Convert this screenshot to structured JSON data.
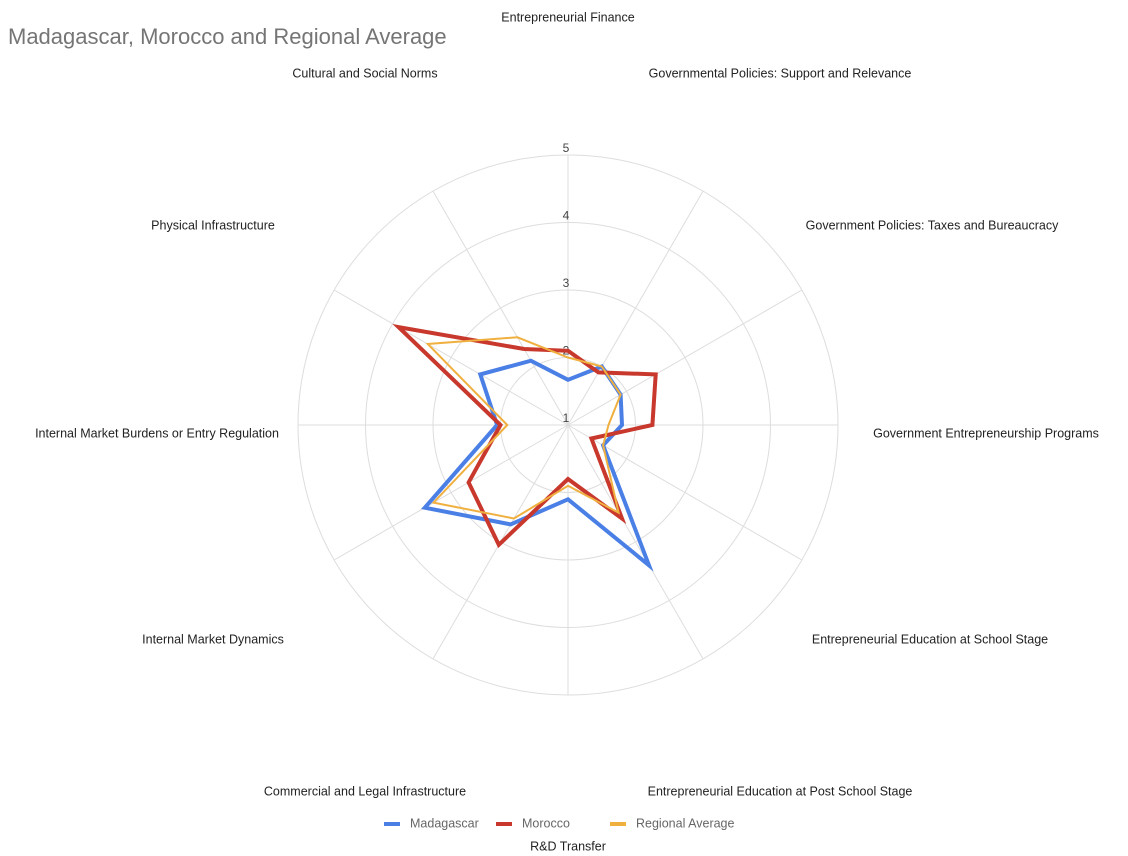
{
  "chart_data": {
    "type": "radar",
    "title": "Madagascar, Morocco and Regional Average",
    "categories": [
      "Entrepreneurial Finance",
      "Governmental Policies: Support and Relevance",
      "Government Policies: Taxes and Bureaucracy",
      "Government Entrepreneurship Programs",
      "Entrepreneurial Education at School Stage",
      "Entrepreneurial Education at Post School Stage",
      "R&D Transfer",
      "Commercial and Legal Infrastructure",
      "Internal Market Dynamics",
      "Internal Market Burdens or Entry Regulation",
      "Physical Infrastructure",
      "Cultural and Social Norms"
    ],
    "series": [
      {
        "name": "Madagascar",
        "color": "#4a7fe6",
        "values": [
          1.67,
          2.0,
          1.9,
          1.8,
          1.6,
          3.4,
          2.1,
          2.7,
          3.45,
          2.05,
          2.5,
          2.1
        ]
      },
      {
        "name": "Morocco",
        "color": "#c8382c",
        "values": [
          2.1,
          1.9,
          2.5,
          2.25,
          1.4,
          2.6,
          1.8,
          3.05,
          2.7,
          2.0,
          3.9,
          2.3
        ]
      },
      {
        "name": "Regional Average",
        "color": "#f0b040",
        "values": [
          2.0,
          2.0,
          1.9,
          1.6,
          1.6,
          2.5,
          1.9,
          2.6,
          3.3,
          1.9,
          3.4,
          2.5
        ]
      }
    ],
    "rlim": [
      1,
      5
    ],
    "rticks": [
      1,
      2,
      3,
      4,
      5
    ],
    "grid": true
  }
}
